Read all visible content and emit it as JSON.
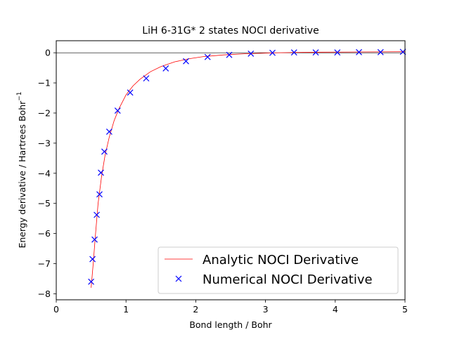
{
  "chart_data": {
    "type": "line",
    "title": "LiH 6-31G* 2 states NOCI derivative",
    "xlabel": "Bond length / Bohr",
    "ylabel_main": "Energy derivative / Hartrees Bohr",
    "ylabel_sup": "−1",
    "xlim": [
      0,
      5
    ],
    "ylim": [
      -8.2,
      0.4
    ],
    "xticks": [
      0,
      1,
      2,
      3,
      4,
      5
    ],
    "xtick_labels": [
      "0",
      "1",
      "2",
      "3",
      "4",
      "5"
    ],
    "yticks": [
      0,
      -1,
      -2,
      -3,
      -4,
      -5,
      -6,
      -7,
      -8
    ],
    "ytick_labels": [
      "0",
      "−1",
      "−2",
      "−3",
      "−4",
      "−5",
      "−6",
      "−7",
      "−8"
    ],
    "hline_y": 0,
    "grid": false,
    "legend_position": "lower-right",
    "series": [
      {
        "name": "Analytic NOCI Derivative",
        "kind": "line",
        "color": "#ff0000",
        "x": [
          0.5,
          0.53,
          0.56,
          0.6,
          0.65,
          0.7,
          0.76,
          0.83,
          0.9,
          1.0,
          1.1,
          1.2,
          1.35,
          1.5,
          1.7,
          1.9,
          2.1,
          2.4,
          2.7,
          3.0,
          3.4,
          3.8,
          4.2,
          4.6,
          5.0
        ],
        "y": [
          -7.8,
          -7.0,
          -6.1,
          -5.0,
          -4.1,
          -3.4,
          -2.8,
          -2.25,
          -1.85,
          -1.4,
          -1.1,
          -0.88,
          -0.63,
          -0.46,
          -0.3,
          -0.2,
          -0.13,
          -0.07,
          -0.035,
          -0.01,
          0.01,
          0.02,
          0.025,
          0.03,
          0.035
        ]
      },
      {
        "name": "Numerical NOCI Derivative",
        "kind": "marker",
        "color": "#0000ff",
        "marker": "x",
        "x": [
          0.5,
          0.52,
          0.55,
          0.58,
          0.62,
          0.64,
          0.69,
          0.76,
          0.88,
          1.06,
          1.29,
          1.57,
          1.86,
          2.17,
          2.48,
          2.79,
          3.1,
          3.41,
          3.72,
          4.03,
          4.34,
          4.65,
          4.97
        ],
        "y": [
          -7.6,
          -6.85,
          -6.2,
          -5.38,
          -4.7,
          -3.98,
          -3.28,
          -2.62,
          -1.92,
          -1.32,
          -0.85,
          -0.52,
          -0.28,
          -0.14,
          -0.07,
          -0.03,
          0.0,
          0.01,
          0.01,
          0.01,
          0.02,
          0.02,
          0.03
        ]
      }
    ]
  }
}
